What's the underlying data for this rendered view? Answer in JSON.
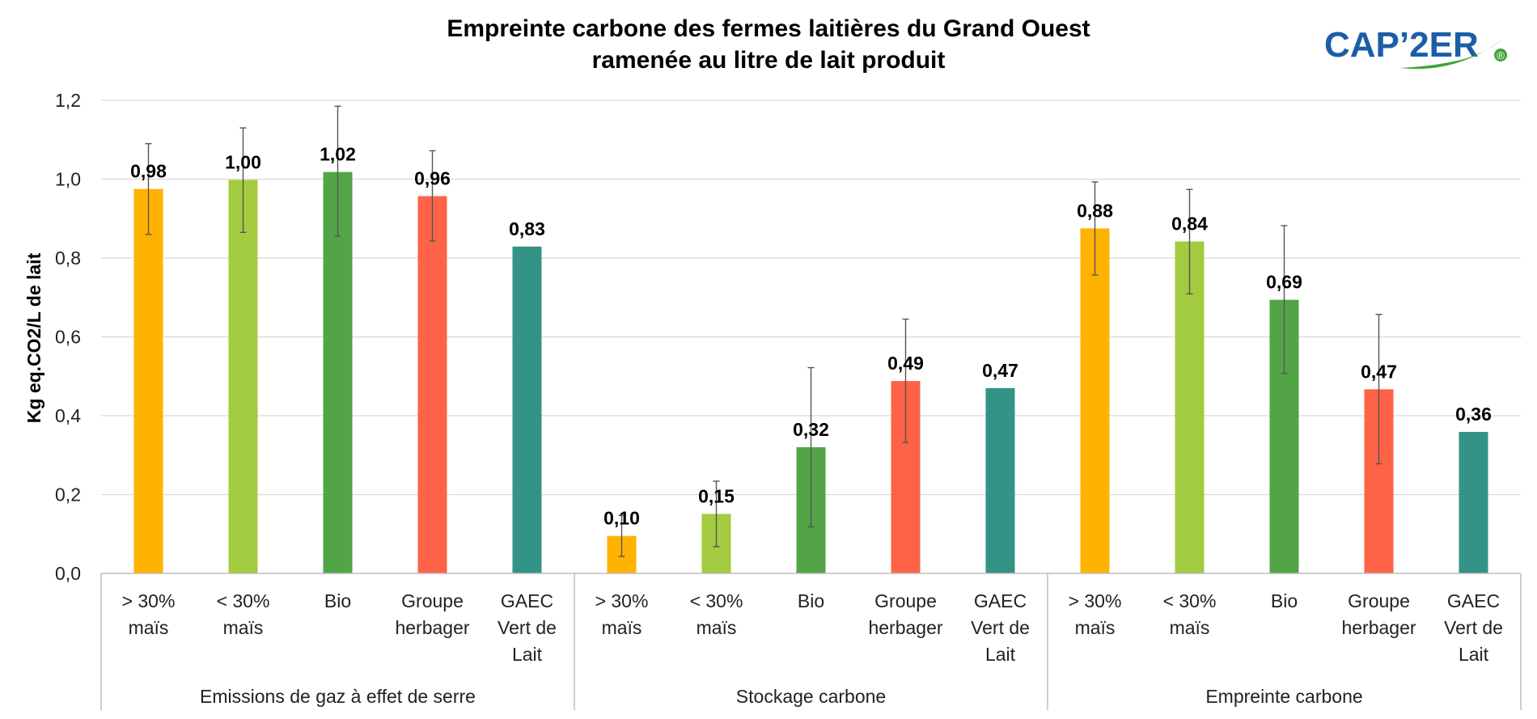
{
  "chart_data": {
    "type": "bar",
    "title": [
      "Empreinte carbone des fermes laitières du Grand Ouest",
      "ramenée au litre de lait produit"
    ],
    "ylabel": "Kg eq.CO2/L de lait",
    "ylim": [
      0,
      1.2
    ],
    "yticks": [
      "0,0",
      "0,2",
      "0,4",
      "0,6",
      "0,8",
      "1,0",
      "1,2"
    ],
    "grid": true,
    "categories": [
      [
        "> 30%",
        "maïs"
      ],
      [
        "< 30%",
        "maïs"
      ],
      [
        "Bio"
      ],
      [
        "Groupe",
        "herbager"
      ],
      [
        "GAEC",
        "Vert de",
        "Lait"
      ]
    ],
    "colors": [
      "#FFB300",
      "#A3CB3F",
      "#52A447",
      "#FF6347",
      "#329386"
    ],
    "groups": [
      {
        "name": "Emissions de gaz à effet de serre",
        "values": [
          0.975,
          0.998,
          1.018,
          0.957,
          0.829
        ],
        "labels": [
          "0,98",
          "1,00",
          "1,02",
          "0,96",
          "0,83"
        ],
        "err_low": [
          0.86,
          0.865,
          0.855,
          0.843,
          null
        ],
        "err_high": [
          1.09,
          1.13,
          1.185,
          1.072,
          null
        ]
      },
      {
        "name": "Stockage carbone",
        "values": [
          0.095,
          0.151,
          0.32,
          0.488,
          0.47
        ],
        "labels": [
          "0,10",
          "0,15",
          "0,32",
          "0,49",
          "0,47"
        ],
        "err_low": [
          0.043,
          0.068,
          0.118,
          0.332,
          null
        ],
        "err_high": [
          0.147,
          0.234,
          0.522,
          0.645,
          null
        ]
      },
      {
        "name": "Empreinte carbone",
        "values": [
          0.875,
          0.842,
          0.694,
          0.467,
          0.359
        ],
        "labels": [
          "0,88",
          "0,84",
          "0,69",
          "0,47",
          "0,36"
        ],
        "err_low": [
          0.757,
          0.709,
          0.507,
          0.278,
          null
        ],
        "err_high": [
          0.993,
          0.974,
          0.882,
          0.657,
          null
        ]
      }
    ]
  },
  "logo": {
    "text": "CAP’2ER",
    "mark": "®",
    "colors": {
      "primary": "#1B5EA8",
      "accent": "#3FA535"
    }
  }
}
